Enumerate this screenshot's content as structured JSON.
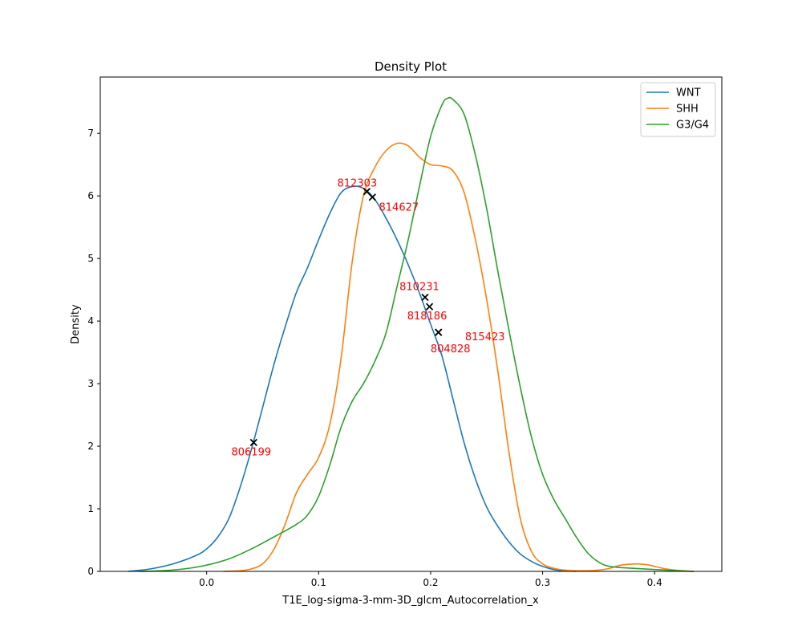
{
  "chart_data": {
    "type": "line",
    "title": "Density Plot",
    "xlabel": "T1E_log-sigma-3-mm-3D_glcm_Autocorrelation_x",
    "ylabel": "Density",
    "xlim": [
      -0.095,
      0.46
    ],
    "ylim": [
      0,
      7.9
    ],
    "xticks": [
      0.0,
      0.1,
      0.2,
      0.3,
      0.4
    ],
    "xtick_labels": [
      "0.0",
      "0.1",
      "0.2",
      "0.3",
      "0.4"
    ],
    "yticks": [
      0,
      1,
      2,
      3,
      4,
      5,
      6,
      7
    ],
    "ytick_labels": [
      "0",
      "1",
      "2",
      "3",
      "4",
      "5",
      "6",
      "7"
    ],
    "legend_position": "top-right",
    "series": [
      {
        "name": "WNT",
        "color": "#1f77b4",
        "points": [
          [
            -0.07,
            0.0
          ],
          [
            -0.05,
            0.04
          ],
          [
            -0.03,
            0.12
          ],
          [
            -0.01,
            0.25
          ],
          [
            0.0,
            0.36
          ],
          [
            0.01,
            0.55
          ],
          [
            0.02,
            0.85
          ],
          [
            0.03,
            1.35
          ],
          [
            0.04,
            1.95
          ],
          [
            0.05,
            2.62
          ],
          [
            0.06,
            3.3
          ],
          [
            0.07,
            3.9
          ],
          [
            0.08,
            4.45
          ],
          [
            0.09,
            4.85
          ],
          [
            0.1,
            5.3
          ],
          [
            0.11,
            5.72
          ],
          [
            0.12,
            6.05
          ],
          [
            0.13,
            6.15
          ],
          [
            0.14,
            6.12
          ],
          [
            0.15,
            5.95
          ],
          [
            0.16,
            5.65
          ],
          [
            0.17,
            5.3
          ],
          [
            0.18,
            4.9
          ],
          [
            0.19,
            4.45
          ],
          [
            0.2,
            3.95
          ],
          [
            0.21,
            3.45
          ],
          [
            0.22,
            2.75
          ],
          [
            0.23,
            2.05
          ],
          [
            0.24,
            1.48
          ],
          [
            0.25,
            1.03
          ],
          [
            0.26,
            0.72
          ],
          [
            0.27,
            0.47
          ],
          [
            0.28,
            0.28
          ],
          [
            0.29,
            0.16
          ],
          [
            0.3,
            0.08
          ],
          [
            0.31,
            0.03
          ],
          [
            0.32,
            0.01
          ],
          [
            0.33,
            0.0
          ]
        ]
      },
      {
        "name": "SHH",
        "color": "#ff7f0e",
        "points": [
          [
            0.015,
            0.0
          ],
          [
            0.03,
            0.01
          ],
          [
            0.04,
            0.04
          ],
          [
            0.05,
            0.12
          ],
          [
            0.06,
            0.35
          ],
          [
            0.07,
            0.75
          ],
          [
            0.08,
            1.25
          ],
          [
            0.09,
            1.55
          ],
          [
            0.1,
            1.82
          ],
          [
            0.11,
            2.35
          ],
          [
            0.12,
            3.4
          ],
          [
            0.13,
            4.95
          ],
          [
            0.14,
            6.0
          ],
          [
            0.15,
            6.45
          ],
          [
            0.16,
            6.72
          ],
          [
            0.17,
            6.84
          ],
          [
            0.18,
            6.8
          ],
          [
            0.19,
            6.62
          ],
          [
            0.2,
            6.5
          ],
          [
            0.21,
            6.48
          ],
          [
            0.22,
            6.4
          ],
          [
            0.23,
            6.05
          ],
          [
            0.24,
            5.3
          ],
          [
            0.25,
            4.35
          ],
          [
            0.26,
            3.2
          ],
          [
            0.27,
            1.9
          ],
          [
            0.28,
            0.85
          ],
          [
            0.29,
            0.32
          ],
          [
            0.3,
            0.12
          ],
          [
            0.31,
            0.05
          ],
          [
            0.32,
            0.02
          ],
          [
            0.335,
            0.01
          ],
          [
            0.35,
            0.02
          ],
          [
            0.36,
            0.05
          ],
          [
            0.37,
            0.1
          ],
          [
            0.385,
            0.12
          ],
          [
            0.395,
            0.1
          ],
          [
            0.41,
            0.04
          ],
          [
            0.425,
            0.01
          ],
          [
            0.435,
            0.0
          ]
        ]
      },
      {
        "name": "G3/G4",
        "color": "#2ca02c",
        "points": [
          [
            -0.06,
            0.0
          ],
          [
            -0.04,
            0.01
          ],
          [
            -0.02,
            0.04
          ],
          [
            0.0,
            0.1
          ],
          [
            0.02,
            0.2
          ],
          [
            0.04,
            0.36
          ],
          [
            0.06,
            0.55
          ],
          [
            0.08,
            0.75
          ],
          [
            0.09,
            0.9
          ],
          [
            0.1,
            1.2
          ],
          [
            0.11,
            1.7
          ],
          [
            0.12,
            2.3
          ],
          [
            0.13,
            2.72
          ],
          [
            0.14,
            3.0
          ],
          [
            0.15,
            3.35
          ],
          [
            0.16,
            3.8
          ],
          [
            0.17,
            4.55
          ],
          [
            0.18,
            5.3
          ],
          [
            0.19,
            6.15
          ],
          [
            0.2,
            6.95
          ],
          [
            0.21,
            7.45
          ],
          [
            0.215,
            7.56
          ],
          [
            0.22,
            7.54
          ],
          [
            0.23,
            7.3
          ],
          [
            0.24,
            6.65
          ],
          [
            0.25,
            5.8
          ],
          [
            0.26,
            4.8
          ],
          [
            0.27,
            3.85
          ],
          [
            0.28,
            2.95
          ],
          [
            0.29,
            2.15
          ],
          [
            0.3,
            1.55
          ],
          [
            0.31,
            1.15
          ],
          [
            0.32,
            0.85
          ],
          [
            0.33,
            0.55
          ],
          [
            0.34,
            0.3
          ],
          [
            0.35,
            0.15
          ],
          [
            0.36,
            0.08
          ],
          [
            0.38,
            0.05
          ],
          [
            0.4,
            0.03
          ],
          [
            0.42,
            0.01
          ],
          [
            0.435,
            0.0
          ]
        ]
      }
    ],
    "markers": [
      {
        "label": "812303",
        "x": 0.143,
        "y": 6.07
      },
      {
        "label": "814627",
        "x": 0.148,
        "y": 5.98
      },
      {
        "label": "810231",
        "x": 0.195,
        "y": 4.38
      },
      {
        "label": "818186",
        "x": 0.199,
        "y": 4.23
      },
      {
        "label": "815423",
        "x": 0.207,
        "y": 3.82
      },
      {
        "label": "804828",
        "x": 0.207,
        "y": 3.82
      },
      {
        "label": "806199",
        "x": 0.042,
        "y": 2.06
      }
    ],
    "marker_color": "#000000",
    "label_color": "#ff0000"
  }
}
